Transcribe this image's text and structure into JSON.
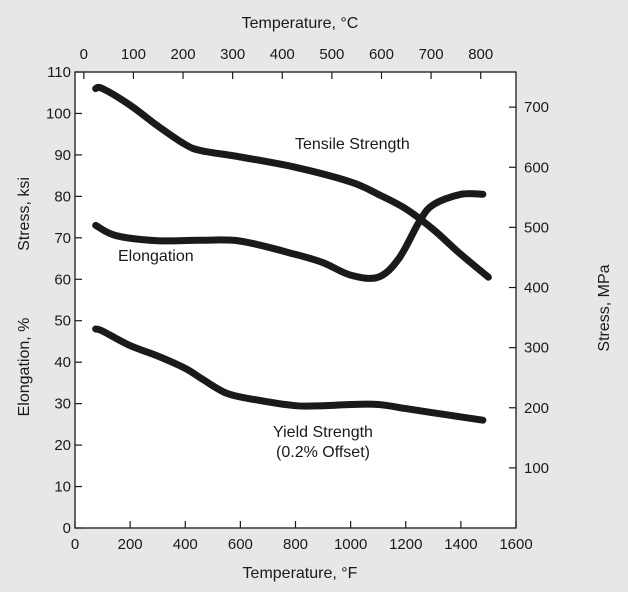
{
  "chart_data": {
    "type": "line",
    "title": "",
    "x_bottom": {
      "label": "Temperature, °F",
      "range": [
        0,
        1600
      ],
      "ticks": [
        0,
        200,
        400,
        600,
        800,
        1000,
        1200,
        1400,
        1600
      ]
    },
    "x_top": {
      "label": "Temperature, °C",
      "ticks": [
        0,
        100,
        200,
        300,
        400,
        500,
        600,
        700,
        800
      ]
    },
    "y_left": {
      "label_stress": "Stress, ksi",
      "label_elongation": "Elongation, %",
      "range": [
        0,
        110
      ],
      "ticks": [
        0,
        10,
        20,
        30,
        40,
        50,
        60,
        70,
        80,
        90,
        100,
        110
      ]
    },
    "y_right": {
      "label": "Stress, MPa",
      "ticks": [
        100,
        200,
        300,
        400,
        500,
        600,
        700
      ]
    },
    "annotations": {
      "tensile": "Tensile Strength",
      "elongation": "Elongation",
      "yield_line1": "Yield Strength",
      "yield_line2": "(0.2% Offset)"
    },
    "series": [
      {
        "name": "Tensile Strength",
        "x": [
          75,
          100,
          200,
          300,
          400,
          460,
          600,
          800,
          1000,
          1100,
          1200,
          1300,
          1400,
          1500
        ],
        "y": [
          106,
          106,
          102,
          97,
          92.5,
          91,
          89.5,
          87,
          83.5,
          80.5,
          77,
          72,
          66,
          60.5
        ]
      },
      {
        "name": "Elongation",
        "x": [
          75,
          150,
          300,
          450,
          600,
          800,
          900,
          1000,
          1100,
          1175,
          1250,
          1300,
          1400,
          1480
        ],
        "y": [
          73,
          70.5,
          69.3,
          69.4,
          69.2,
          66,
          64,
          61,
          60.5,
          65,
          74,
          78,
          80.5,
          80.5
        ]
      },
      {
        "name": "Yield Strength (0.2% Offset)",
        "x": [
          75,
          100,
          200,
          300,
          400,
          460,
          550,
          650,
          800,
          900,
          1000,
          1100,
          1200,
          1300,
          1400,
          1480
        ],
        "y": [
          48,
          47.5,
          44,
          41.5,
          38.5,
          36,
          32.5,
          31,
          29.5,
          29.5,
          29.8,
          29.8,
          28.8,
          27.8,
          26.8,
          26
        ]
      }
    ]
  }
}
